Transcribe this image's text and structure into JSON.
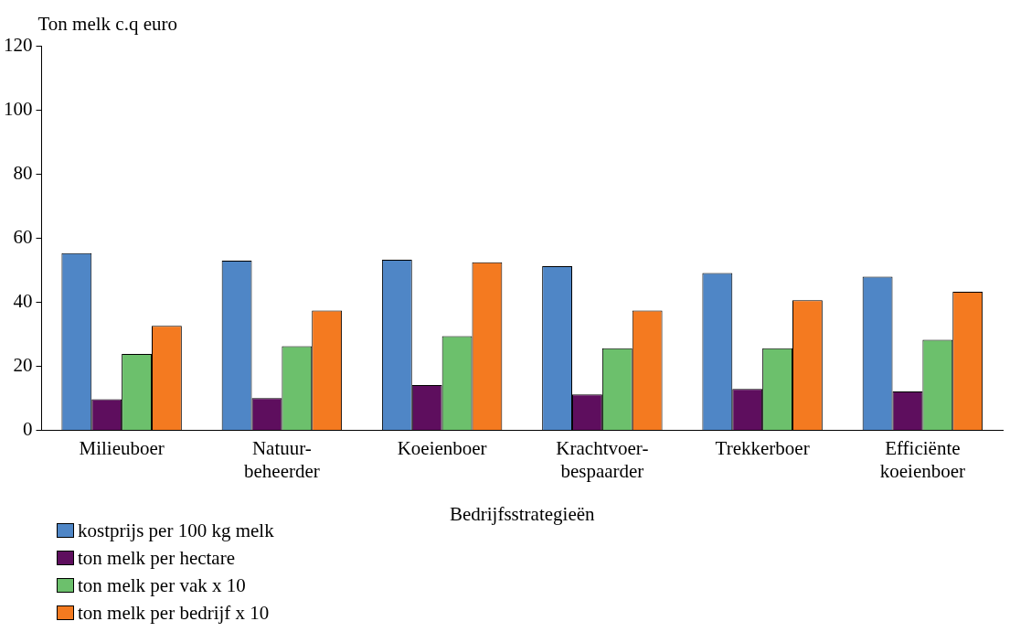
{
  "chart_data": {
    "type": "bar",
    "ylabel": "Ton melk c.q euro",
    "xlabel": "Bedrijfsstrategieën",
    "categories": [
      "Milieuboer",
      "Natuur-beheerder",
      "Koeienboer",
      "Krachtvoer-bespaarder",
      "Trekkerboer",
      "Efficiënte koeienboer"
    ],
    "series": [
      {
        "name": "kostprijs per 100 kg melk",
        "color": "#4f86c6",
        "values": [
          55.3,
          52.9,
          53.2,
          51.2,
          49.1,
          47.9
        ]
      },
      {
        "name": "ton melk per hectare",
        "color": "#5e0e5e",
        "values": [
          9.7,
          10,
          14.1,
          11.2,
          12.9,
          12.1
        ]
      },
      {
        "name": "ton melk per vak x 10",
        "color": "#6cc06c",
        "values": [
          23.8,
          26.2,
          29.4,
          25.6,
          25.6,
          28.2
        ]
      },
      {
        "name": "ton melk per bedrijf x 10",
        "color": "#f47a20",
        "values": [
          32.6,
          37.4,
          52.4,
          37.4,
          40.6,
          43.2
        ]
      }
    ],
    "ylim": [
      0,
      120
    ],
    "yticks": [
      0,
      20,
      40,
      60,
      80,
      100,
      120
    ],
    "grid": false,
    "legend": "bottom left"
  }
}
